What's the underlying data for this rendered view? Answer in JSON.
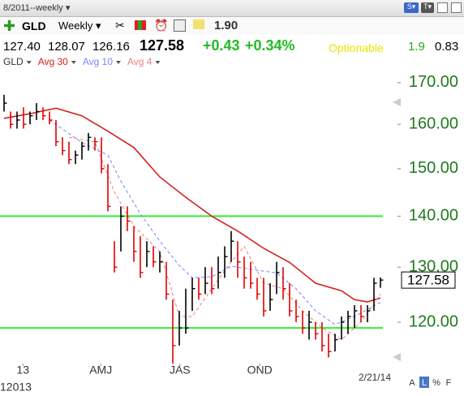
{
  "header": {
    "period": "8/2011--weekly",
    "symbol": "GLD",
    "interval": "Weekly",
    "value": "1.90"
  },
  "quote": {
    "open": "127.40",
    "high": "128.07",
    "low": "126.16",
    "last": "127.58",
    "change": "+0.43",
    "change_pct": "+0.34%",
    "optionable": "Optionable",
    "v1": "1.9",
    "v2": "0.83"
  },
  "footer": [
    "A",
    "L",
    "%",
    "F"
  ],
  "chart_data": {
    "type": "ohlc",
    "log_scale": true,
    "ylim": [
      113,
      173.2
    ],
    "yticks": [
      {
        "value": 120,
        "label": "120.00"
      },
      {
        "value": 130,
        "label": "130.00"
      },
      {
        "value": 140,
        "label": "140.00"
      },
      {
        "value": 150,
        "label": "150.00"
      },
      {
        "value": 160,
        "label": "160.00"
      },
      {
        "value": 170,
        "label": "170.00"
      }
    ],
    "xlim": [
      -0.625,
      60.625
    ],
    "xticks": [
      {
        "value": 2.9,
        "label": "13"
      },
      {
        "value": 14.9,
        "label": "AMJ"
      },
      {
        "value": 27.1,
        "label": "JAS"
      },
      {
        "value": 39.4,
        "label": "OND"
      }
    ],
    "year_label": "12013",
    "last_date": "2/21/14",
    "hlines": [
      140,
      119
    ],
    "hline_color": "#33ee33",
    "series": [
      {
        "name": "GLD",
        "color": "#000000",
        "down_color": "#e00000",
        "high": [
          167,
          163,
          163,
          164,
          163,
          165,
          164,
          163,
          161,
          157,
          156,
          154,
          156,
          158,
          157,
          157,
          151,
          135,
          142,
          142,
          138,
          136,
          135,
          134,
          133,
          131,
          124,
          122,
          126,
          128,
          128,
          130,
          130,
          132,
          134,
          137,
          135,
          132,
          131,
          128,
          128,
          127,
          131,
          130,
          127,
          124,
          122,
          122,
          120,
          120,
          118,
          118,
          121,
          122,
          123,
          123,
          123,
          128,
          128.07
        ],
        "low": [
          163,
          159,
          159,
          159,
          160,
          161,
          161,
          160,
          155,
          153,
          151,
          151,
          152,
          154,
          154,
          149,
          141,
          129,
          133,
          137,
          131,
          128,
          130,
          130,
          129,
          124,
          113,
          116,
          118,
          122,
          124,
          125,
          125,
          126,
          128,
          131,
          128,
          126,
          126,
          124,
          121,
          122,
          125,
          124,
          121,
          120,
          118,
          117,
          117,
          115,
          114,
          115,
          117,
          118,
          119,
          120,
          120,
          122,
          126.16
        ],
        "close": [
          165,
          160,
          161,
          160,
          162,
          163,
          162,
          161,
          156,
          154,
          152,
          153,
          155,
          157,
          156,
          150,
          142,
          130,
          140,
          139,
          133,
          129,
          133,
          131,
          131,
          125,
          116,
          119,
          119,
          126,
          125,
          127,
          126,
          129,
          132,
          135,
          131,
          128,
          127,
          125,
          122,
          124,
          129,
          126,
          122,
          121,
          119,
          120,
          118,
          116,
          115,
          117,
          120,
          121,
          122,
          121,
          122,
          127,
          127.58
        ]
      },
      {
        "name": "Avg 30",
        "color": "#d62020",
        "dash": false,
        "x": [
          0,
          4,
          8,
          12,
          16,
          20,
          24,
          28,
          32,
          36,
          40,
          44,
          48,
          52,
          54,
          56,
          58
        ],
        "values": [
          161.4,
          162.5,
          163.8,
          162,
          158.4,
          154.7,
          148.2,
          143.9,
          140,
          137,
          133.6,
          130.9,
          127,
          125.6,
          124,
          123.6,
          124.3
        ]
      },
      {
        "name": "Avg 10",
        "color": "#8080ff",
        "dash": true,
        "x": [
          7,
          12,
          16,
          18,
          21,
          24,
          27,
          29,
          32,
          35,
          38,
          42,
          45,
          48,
          51,
          54,
          58
        ],
        "values": [
          161,
          155.8,
          153,
          147.3,
          140.5,
          135,
          130.3,
          128,
          128.2,
          130.2,
          129.6,
          128.9,
          126,
          122,
          119.6,
          121,
          123.5
        ]
      },
      {
        "name": "Avg 4",
        "color": "#e88080",
        "dash": true,
        "x": [
          10,
          14,
          17,
          20,
          24,
          26,
          27,
          29,
          32,
          35,
          37,
          40,
          43,
          46,
          49,
          52,
          55,
          58
        ],
        "values": [
          157,
          156,
          145,
          138,
          133,
          125,
          121,
          121,
          126,
          131,
          134,
          127,
          126,
          122,
          119,
          117,
          120,
          125
        ]
      }
    ]
  }
}
